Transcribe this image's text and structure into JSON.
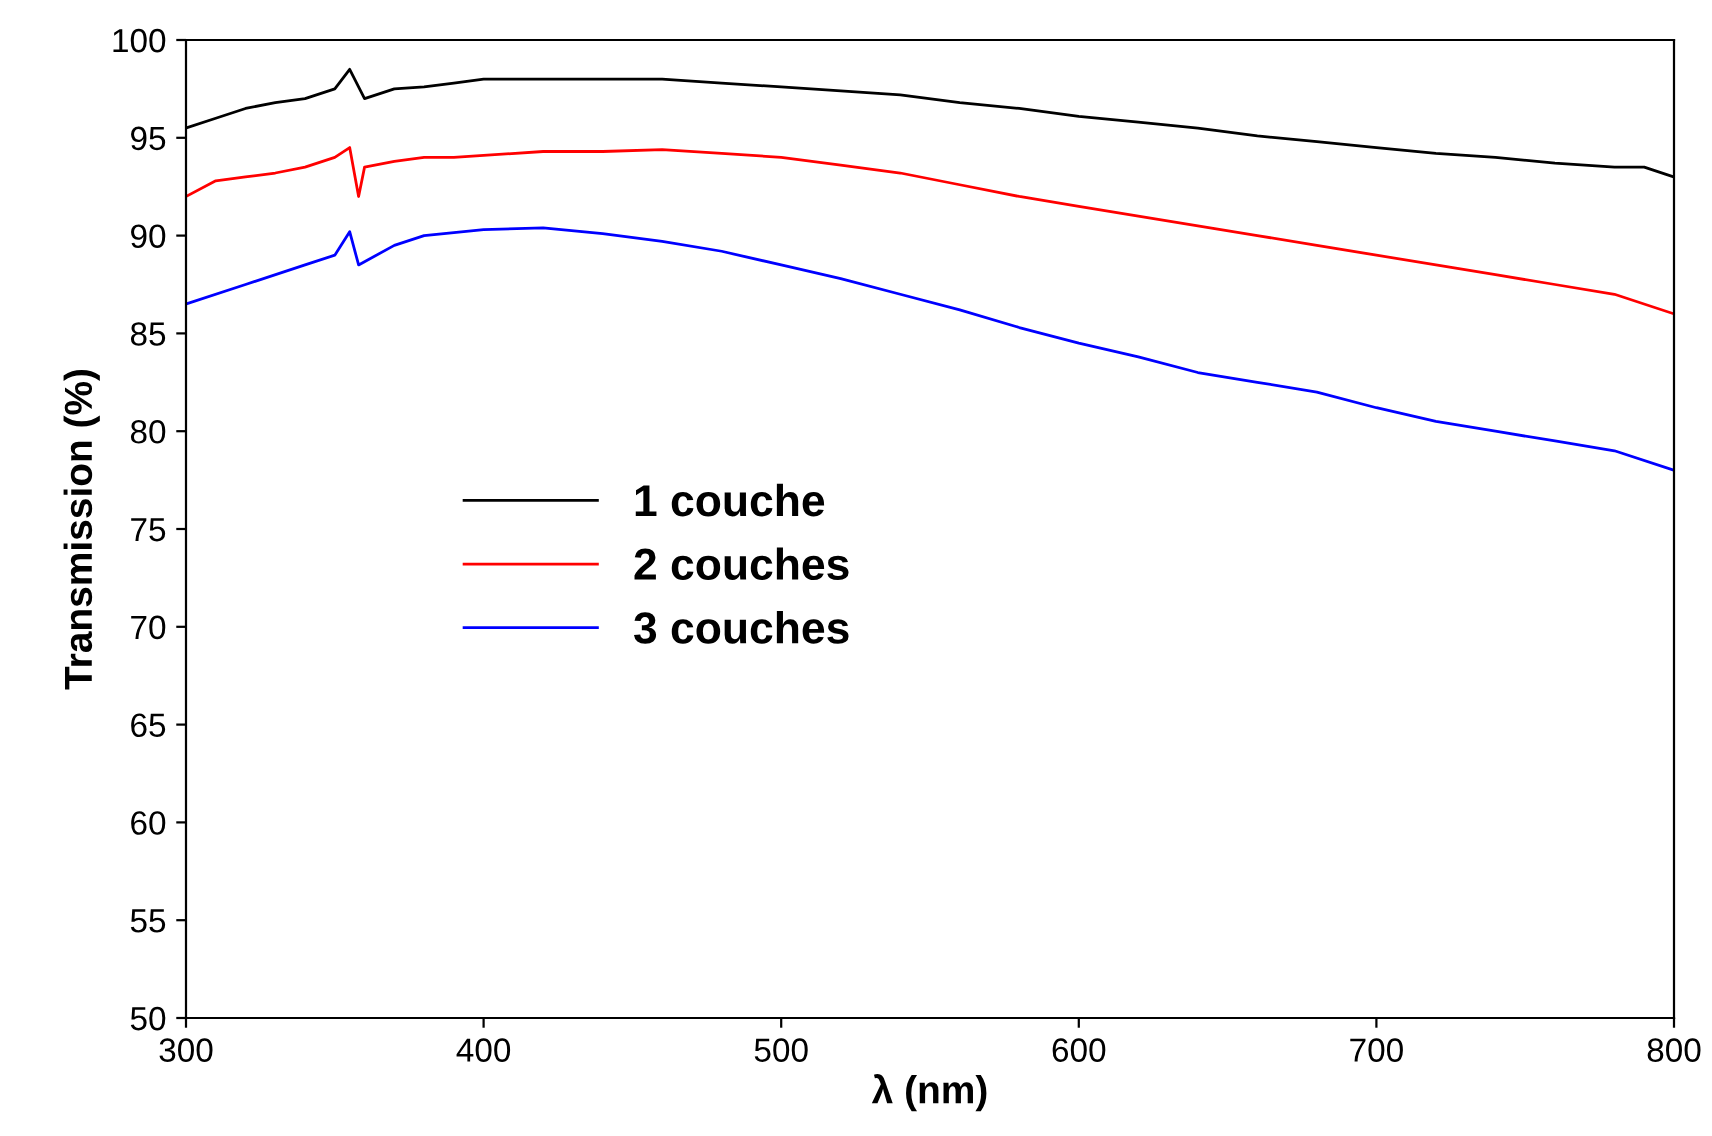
{
  "chart_data": {
    "type": "line",
    "xlabel": "λ (nm)",
    "ylabel": "Transmission (%)",
    "xlim": [
      300,
      800
    ],
    "ylim": [
      50,
      100
    ],
    "xticks": [
      300,
      400,
      500,
      600,
      700,
      800
    ],
    "yticks": [
      50,
      55,
      60,
      65,
      70,
      75,
      80,
      85,
      90,
      95,
      100
    ],
    "grid": false,
    "legend": "left",
    "marker": "none",
    "line_style": "solid",
    "series": [
      {
        "name": "1 couche",
        "color": "#000000",
        "x": [
          300,
          310,
          320,
          330,
          340,
          350,
          355,
          360,
          370,
          380,
          390,
          400,
          420,
          440,
          460,
          480,
          500,
          520,
          540,
          560,
          580,
          600,
          620,
          640,
          660,
          680,
          700,
          720,
          740,
          760,
          780,
          790,
          800
        ],
        "values": [
          95.5,
          96,
          96.5,
          96.8,
          97,
          97.5,
          98.5,
          97,
          97.5,
          97.6,
          97.8,
          98,
          98,
          98,
          98,
          97.8,
          97.6,
          97.4,
          97.2,
          96.8,
          96.5,
          96.1,
          95.8,
          95.5,
          95.1,
          94.8,
          94.5,
          94.2,
          94,
          93.7,
          93.5,
          93.5,
          93
        ]
      },
      {
        "name": "2 couches",
        "color": "#ff0000",
        "x": [
          300,
          310,
          320,
          330,
          340,
          350,
          355,
          358,
          360,
          370,
          380,
          390,
          400,
          420,
          440,
          460,
          480,
          500,
          520,
          540,
          560,
          580,
          600,
          620,
          640,
          660,
          680,
          700,
          720,
          740,
          760,
          780,
          800
        ],
        "values": [
          92,
          92.8,
          93,
          93.2,
          93.5,
          94,
          94.5,
          92,
          93.5,
          93.8,
          94,
          94,
          94.1,
          94.3,
          94.3,
          94.4,
          94.2,
          94,
          93.6,
          93.2,
          92.6,
          92,
          91.5,
          91,
          90.5,
          90,
          89.5,
          89,
          88.5,
          88,
          87.5,
          87,
          86
        ]
      },
      {
        "name": "3 couches",
        "color": "#0000ff",
        "x": [
          300,
          320,
          340,
          350,
          355,
          358,
          370,
          380,
          400,
          420,
          440,
          460,
          480,
          500,
          520,
          540,
          560,
          580,
          600,
          620,
          640,
          660,
          680,
          700,
          720,
          740,
          760,
          780,
          800
        ],
        "values": [
          86.5,
          87.5,
          88.5,
          89,
          90.2,
          88.5,
          89.5,
          90,
          90.3,
          90.4,
          90.1,
          89.7,
          89.2,
          88.5,
          87.8,
          87,
          86.2,
          85.3,
          84.5,
          83.8,
          83,
          82.5,
          82,
          81.2,
          80.5,
          80,
          79.5,
          79,
          78
        ]
      }
    ]
  }
}
